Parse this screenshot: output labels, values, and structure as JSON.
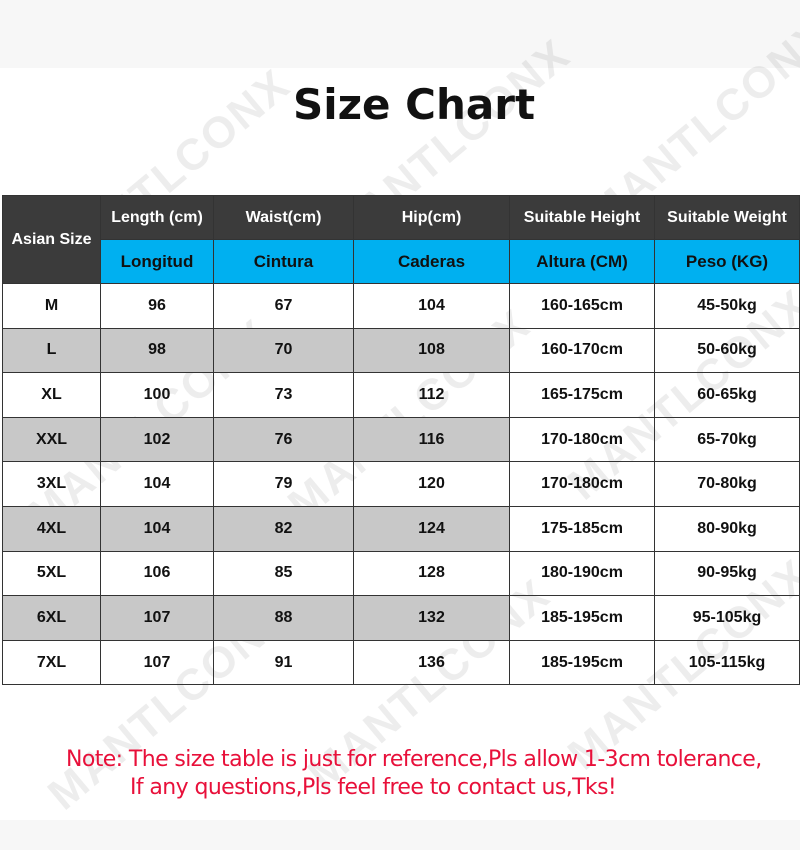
{
  "title": "Size Chart",
  "watermark": "MANTLCONX",
  "table": {
    "corner_header": "Asian Size",
    "headers_en": [
      "Length (cm)",
      "Waist(cm)",
      "Hip(cm)",
      "Suitable Height",
      "Suitable Weight"
    ],
    "headers_es": [
      "Longitud",
      "Cintura",
      "Caderas",
      "Altura (CM)",
      "Peso (KG)"
    ],
    "rows": [
      [
        "M",
        "96",
        "67",
        "104",
        "160-165cm",
        "45-50kg"
      ],
      [
        "L",
        "98",
        "70",
        "108",
        "160-170cm",
        "50-60kg"
      ],
      [
        "XL",
        "100",
        "73",
        "112",
        "165-175cm",
        "60-65kg"
      ],
      [
        "XXL",
        "102",
        "76",
        "116",
        "170-180cm",
        "65-70kg"
      ],
      [
        "3XL",
        "104",
        "79",
        "120",
        "170-180cm",
        "70-80kg"
      ],
      [
        "4XL",
        "104",
        "82",
        "124",
        "175-185cm",
        "80-90kg"
      ],
      [
        "5XL",
        "106",
        "85",
        "128",
        "180-190cm",
        "90-95kg"
      ],
      [
        "6XL",
        "107",
        "88",
        "132",
        "185-195cm",
        "95-105kg"
      ],
      [
        "7XL",
        "107",
        "91",
        "136",
        "185-195cm",
        "105-115kg"
      ]
    ]
  },
  "note": {
    "line1": "Note: The size table is just for reference,Pls allow 1-3cm tolerance,",
    "line2": "If any questions,Pls feel free to contact us,Tks!"
  },
  "colors": {
    "header_dark": "#3b3b3b",
    "header_cyan": "#00b0f0",
    "alt_row": "#c8c8c8",
    "note": "#e8103a"
  }
}
